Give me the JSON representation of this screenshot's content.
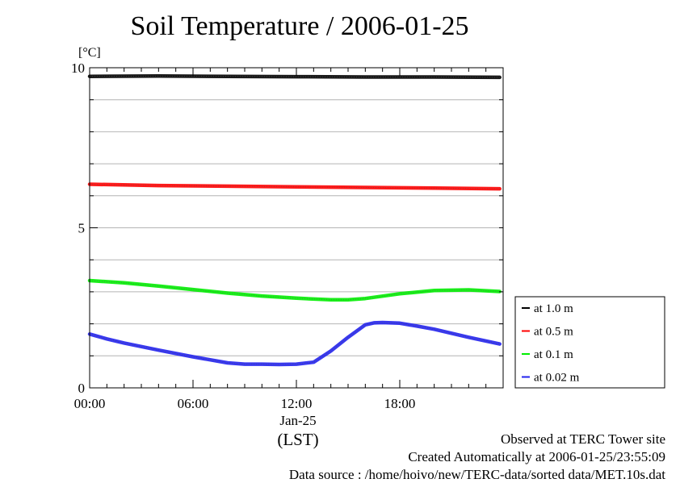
{
  "chart_data": {
    "type": "line",
    "title": "Soil Temperature / 2006-01-25",
    "yunit": "[°C]",
    "ylim": [
      0,
      10
    ],
    "yticks": [
      0,
      5,
      10
    ],
    "xlim": [
      0,
      24
    ],
    "xticks": [
      {
        "value": 0,
        "label": "00:00"
      },
      {
        "value": 6,
        "label": "06:00"
      },
      {
        "value": 12,
        "label": "12:00"
      },
      {
        "value": 18,
        "label": "18:00"
      }
    ],
    "xdate_label": "Jan-25",
    "xlabel": "(LST)",
    "grid": true,
    "legend_position": "right",
    "series": [
      {
        "name": "at 1.0 m",
        "color": "#000000",
        "x": [
          0,
          4,
          8,
          12,
          16,
          20,
          23.8
        ],
        "y": [
          9.73,
          9.74,
          9.73,
          9.72,
          9.71,
          9.71,
          9.7
        ]
      },
      {
        "name": "at 0.5 m",
        "color": "#ff0000",
        "x": [
          0,
          4,
          8,
          12,
          16,
          20,
          23.8
        ],
        "y": [
          6.36,
          6.32,
          6.3,
          6.28,
          6.26,
          6.24,
          6.22
        ]
      },
      {
        "name": "at 0.1 m",
        "color": "#00ee00",
        "x": [
          0,
          2,
          4,
          6,
          8,
          10,
          12,
          14,
          15,
          16,
          18,
          20,
          22,
          23.8
        ],
        "y": [
          3.35,
          3.28,
          3.18,
          3.07,
          2.96,
          2.87,
          2.8,
          2.75,
          2.75,
          2.79,
          2.94,
          3.04,
          3.06,
          3.01
        ]
      },
      {
        "name": "at 0.02 m",
        "color": "#2222ee",
        "x": [
          0,
          1,
          2,
          4,
          6,
          8,
          9,
          10,
          11,
          12,
          13,
          14,
          15,
          16,
          16.5,
          17,
          18,
          19,
          20,
          22,
          23.8
        ],
        "y": [
          1.68,
          1.53,
          1.4,
          1.18,
          0.97,
          0.78,
          0.74,
          0.74,
          0.73,
          0.74,
          0.8,
          1.15,
          1.58,
          1.97,
          2.03,
          2.04,
          2.02,
          1.93,
          1.83,
          1.58,
          1.37
        ]
      }
    ]
  },
  "footer": {
    "line1": "Observed at TERC Tower site",
    "line2": "Created Automatically at 2006-01-25/23:55:09",
    "line3": "Data source : /home/hoivo/new/TERC-data/sorted  data/MET.10s.dat"
  }
}
